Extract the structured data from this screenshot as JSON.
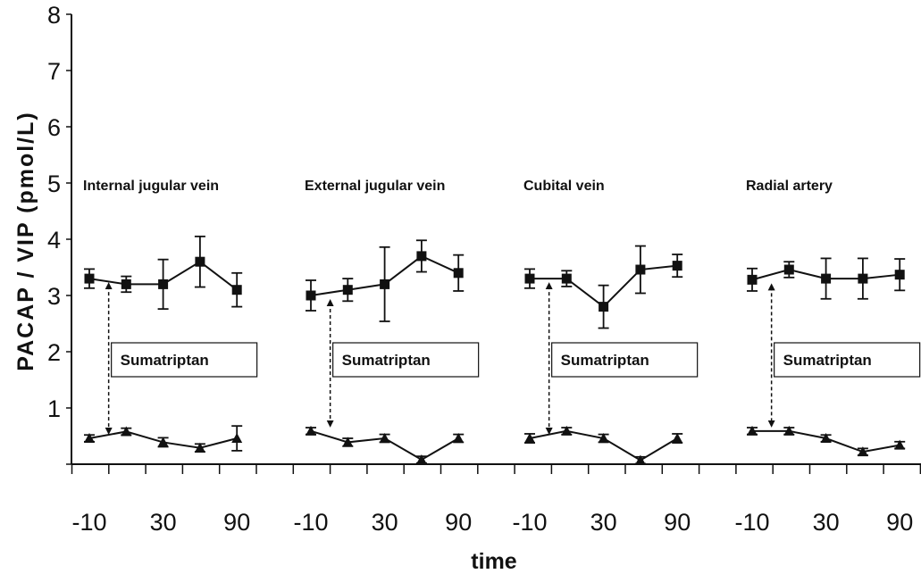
{
  "chart_data": {
    "type": "line",
    "ylabel": "PACAP / VIP (pmol/L)",
    "xlabel": "time",
    "ylim": [
      0,
      8
    ],
    "yticks": [
      "0",
      "1",
      "2",
      "3",
      "4",
      "5",
      "6",
      "7",
      "8"
    ],
    "grid": false,
    "time_points": [
      -10,
      10,
      30,
      60,
      90
    ],
    "xtick_labels": [
      "-10",
      "30",
      "90"
    ],
    "annotation": "Sumatriptan",
    "annotation_time": 0,
    "panels": [
      {
        "title": "Internal jugular vein",
        "series": [
          {
            "name": "PACAP",
            "marker": "square",
            "values": [
              3.3,
              3.2,
              3.2,
              3.6,
              3.1
            ],
            "errors": [
              0.17,
              0.14,
              0.44,
              0.45,
              0.3
            ]
          },
          {
            "name": "VIP",
            "marker": "triangle",
            "values": [
              0.46,
              0.58,
              0.39,
              0.29,
              0.46
            ],
            "errors": [
              0.06,
              0.06,
              0.08,
              0.07,
              0.22
            ]
          }
        ]
      },
      {
        "title": "External jugular vein",
        "series": [
          {
            "name": "PACAP",
            "marker": "square",
            "values": [
              3.0,
              3.1,
              3.2,
              3.7,
              3.4
            ],
            "errors": [
              0.27,
              0.2,
              0.66,
              0.28,
              0.32
            ]
          },
          {
            "name": "VIP",
            "marker": "triangle",
            "values": [
              0.59,
              0.39,
              0.46,
              0.08,
              0.46
            ],
            "errors": [
              0.06,
              0.07,
              0.07,
              0.06,
              0.07
            ]
          }
        ]
      },
      {
        "title": "Cubital vein",
        "series": [
          {
            "name": "PACAP",
            "marker": "square",
            "values": [
              3.3,
              3.3,
              2.8,
              3.46,
              3.53
            ],
            "errors": [
              0.17,
              0.14,
              0.38,
              0.42,
              0.2
            ]
          },
          {
            "name": "VIP",
            "marker": "triangle",
            "values": [
              0.46,
              0.59,
              0.46,
              0.07,
              0.46
            ],
            "errors": [
              0.08,
              0.06,
              0.07,
              0.06,
              0.08
            ]
          }
        ]
      },
      {
        "title": "Radial artery",
        "series": [
          {
            "name": "PACAP",
            "marker": "square",
            "values": [
              3.28,
              3.46,
              3.3,
              3.3,
              3.37
            ],
            "errors": [
              0.2,
              0.14,
              0.36,
              0.36,
              0.28
            ]
          },
          {
            "name": "VIP",
            "marker": "triangle",
            "values": [
              0.59,
              0.59,
              0.46,
              0.22,
              0.34
            ],
            "errors": [
              0.06,
              0.06,
              0.06,
              0.06,
              0.06
            ]
          }
        ]
      }
    ]
  }
}
